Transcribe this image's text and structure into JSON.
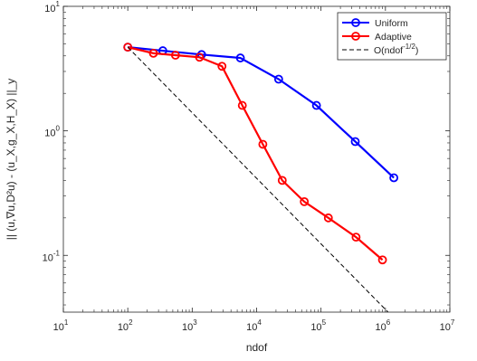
{
  "chart_data": {
    "type": "line",
    "x_scale": "log",
    "y_scale": "log",
    "xlim": [
      10,
      10000000
    ],
    "ylim": [
      0.035,
      10
    ],
    "grid": false,
    "legend_position": "top-right",
    "xlabel": "ndof",
    "ylabel": "|| (u,∇u,D²u) - (u_X,g_X,H_X) ||_y",
    "x_ticks": [
      {
        "value": 10,
        "base": "10",
        "exp": "1"
      },
      {
        "value": 100,
        "base": "10",
        "exp": "2"
      },
      {
        "value": 1000,
        "base": "10",
        "exp": "3"
      },
      {
        "value": 10000,
        "base": "10",
        "exp": "4"
      },
      {
        "value": 100000,
        "base": "10",
        "exp": "5"
      },
      {
        "value": 1000000,
        "base": "10",
        "exp": "6"
      },
      {
        "value": 10000000,
        "base": "10",
        "exp": "7"
      }
    ],
    "y_ticks": [
      {
        "value": 0.1,
        "base": "10",
        "exp": "-1"
      },
      {
        "value": 1,
        "base": "10",
        "exp": "0"
      },
      {
        "value": 10,
        "base": "10",
        "exp": "1"
      }
    ],
    "series": [
      {
        "name": "Uniform",
        "color": "#0000ff",
        "marker": "circle",
        "x": [
          100,
          350,
          1400,
          5600,
          22000,
          85000,
          340000,
          1350000
        ],
        "y": [
          4.7,
          4.4,
          4.1,
          3.85,
          2.6,
          1.6,
          0.82,
          0.42
        ]
      },
      {
        "name": "Adaptive",
        "color": "#ff0000",
        "marker": "circle",
        "x": [
          100,
          250,
          550,
          1300,
          2900,
          6000,
          12500,
          25000,
          55000,
          130000,
          350000,
          900000
        ],
        "y": [
          4.7,
          4.2,
          4.05,
          3.9,
          3.3,
          1.6,
          0.78,
          0.4,
          0.27,
          0.2,
          0.14,
          0.092
        ]
      },
      {
        "name": "O(ndof^{-1/2})",
        "legend_main": "O(ndof",
        "legend_sup": "-1/2",
        "legend_end": ")",
        "color": "#000000",
        "style": "dashed",
        "x": [
          100,
          1100000
        ],
        "y": [
          4.7,
          0.035
        ]
      }
    ]
  }
}
